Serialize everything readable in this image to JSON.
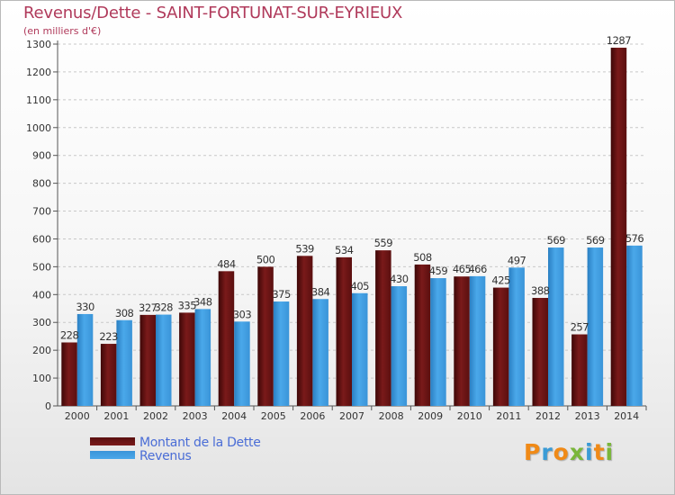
{
  "header": {
    "title": "Revenus/Dette - SAINT-FORTUNAT-SUR-EYRIEUX",
    "subtitle": "(en milliers d'€)"
  },
  "legend": {
    "items": [
      {
        "label": "Montant de la Dette",
        "color": "#7a1a1a"
      },
      {
        "label": "Revenus",
        "color": "#3d97dc"
      }
    ]
  },
  "brand": {
    "letters": [
      {
        "char": "P",
        "color": "#f08a17"
      },
      {
        "char": "r",
        "color": "#3a9bd6"
      },
      {
        "char": "o",
        "color": "#f08a17"
      },
      {
        "char": "x",
        "color": "#7ab63a"
      },
      {
        "char": "i",
        "color": "#3a9bd6"
      },
      {
        "char": "t",
        "color": "#f08a17"
      },
      {
        "char": "i",
        "color": "#7ab63a"
      }
    ]
  },
  "chart_data": {
    "type": "bar",
    "title": "Revenus/Dette - SAINT-FORTUNAT-SUR-EYRIEUX",
    "ylabel": "(en milliers d'€)",
    "xlabel": "",
    "ylim": [
      0,
      1300
    ],
    "yticks": [
      0,
      100,
      200,
      300,
      400,
      500,
      600,
      700,
      800,
      900,
      1000,
      1100,
      1200,
      1300
    ],
    "grid": true,
    "categories": [
      "2000",
      "2001",
      "2002",
      "2003",
      "2004",
      "2005",
      "2006",
      "2007",
      "2008",
      "2009",
      "2010",
      "2011",
      "2012",
      "2013",
      "2014"
    ],
    "series": [
      {
        "name": "Montant de la Dette",
        "color": "#7a1a1a",
        "values": [
          228,
          223,
          327,
          335,
          484,
          500,
          539,
          534,
          559,
          508,
          465,
          425,
          388,
          257,
          1287
        ]
      },
      {
        "name": "Revenus",
        "color": "#3d97dc",
        "values": [
          330,
          308,
          328,
          348,
          303,
          375,
          384,
          405,
          430,
          459,
          466,
          497,
          569,
          569,
          576
        ]
      }
    ]
  }
}
